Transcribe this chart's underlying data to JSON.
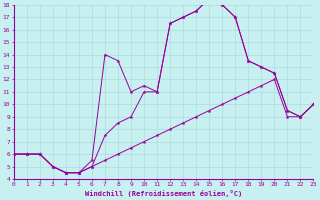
{
  "xlabel": "Windchill (Refroidissement éolien,°C)",
  "xlim": [
    0,
    23
  ],
  "ylim": [
    4,
    18
  ],
  "bg_color": "#c8f0f0",
  "line_color": "#990099",
  "grid_color": "#aadddd",
  "line1_x": [
    0,
    1,
    2,
    3,
    4,
    5,
    6,
    7,
    8,
    9,
    10,
    11,
    12,
    13,
    14,
    15,
    16,
    17,
    18,
    19,
    20,
    21,
    22,
    23
  ],
  "line1_y": [
    6,
    6,
    6,
    5,
    4.5,
    4.5,
    5,
    5.5,
    6,
    6.5,
    7,
    7.5,
    8,
    8.5,
    9,
    9.5,
    10,
    10.5,
    11,
    11.5,
    12,
    9,
    9,
    10
  ],
  "line2_x": [
    0,
    1,
    2,
    3,
    4,
    5,
    6,
    7,
    8,
    9,
    10,
    11,
    12,
    13,
    14,
    15,
    16,
    17,
    18,
    19,
    20,
    21,
    22,
    23
  ],
  "line2_y": [
    6,
    6,
    6,
    5,
    4.5,
    4.5,
    5,
    7.5,
    8.5,
    9,
    11,
    11,
    16.5,
    17,
    17.5,
    18.5,
    18,
    17,
    13.5,
    13,
    12.5,
    9.5,
    9,
    10
  ],
  "line3_x": [
    0,
    1,
    2,
    3,
    4,
    5,
    6,
    7,
    8,
    9,
    10,
    11,
    12,
    13,
    14,
    15,
    16,
    17,
    18,
    19,
    20,
    21,
    22,
    23
  ],
  "line3_y": [
    6,
    6,
    6,
    5,
    4.5,
    4.5,
    5.5,
    14,
    13.5,
    11,
    11.5,
    11,
    16.5,
    17,
    17.5,
    18.5,
    18,
    17,
    13.5,
    13,
    12.5,
    9.5,
    9,
    10
  ]
}
